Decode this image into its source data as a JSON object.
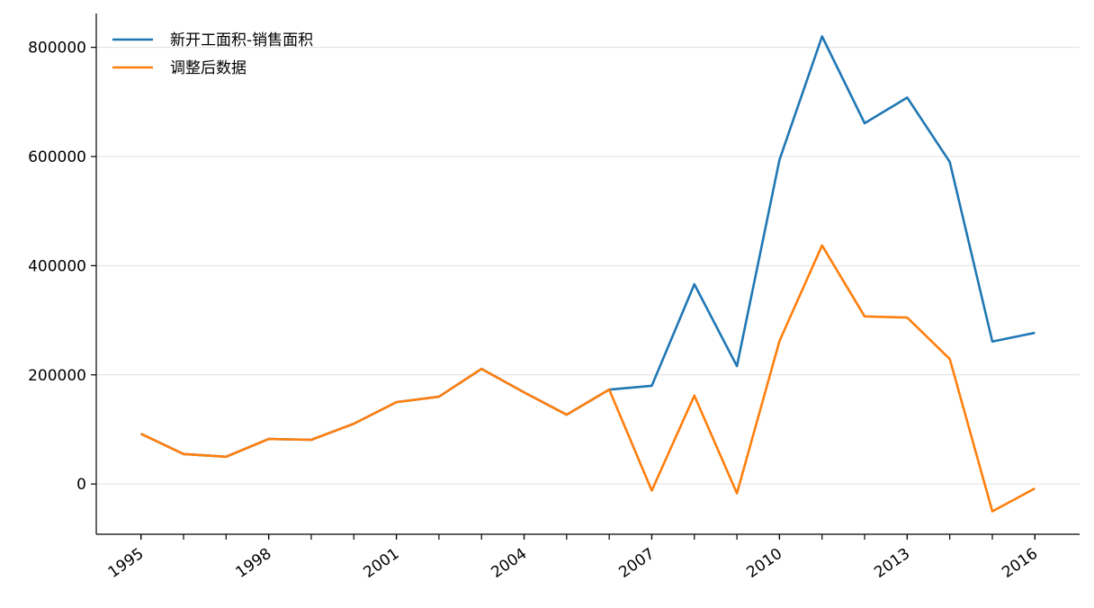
{
  "chart_data": {
    "type": "line",
    "x": [
      1995,
      1996,
      1997,
      1998,
      1999,
      2000,
      2001,
      2002,
      2003,
      2004,
      2005,
      2006,
      2007,
      2008,
      2009,
      2010,
      2011,
      2012,
      2013,
      2014,
      2015,
      2016
    ],
    "series": [
      {
        "name": "新开工面积-销售面积",
        "color": "#1f77b4",
        "values": [
          92000,
          55000,
          50000,
          82500,
          81000,
          110500,
          150000,
          160000,
          211000,
          168000,
          127000,
          173000,
          180000,
          366000,
          216000,
          594000,
          820000,
          661000,
          708000,
          590000,
          261000,
          277000
        ]
      },
      {
        "name": "调整后数据",
        "color": "#ff7f0e",
        "values": [
          92000,
          55000,
          50000,
          82500,
          81000,
          110500,
          150000,
          160000,
          211000,
          168000,
          127000,
          173000,
          -12000,
          162000,
          -17000,
          262000,
          437000,
          307000,
          305000,
          229000,
          -50000,
          -8000
        ]
      }
    ],
    "xlim": [
      1993.95,
      2017.05
    ],
    "xticks": [
      1995,
      1998,
      2001,
      2004,
      2007,
      2010,
      2013,
      2016
    ],
    "ylim": [
      -92000,
      862000
    ],
    "yticks": [
      0,
      200000,
      400000,
      600000,
      800000
    ],
    "grid": true,
    "legend": "upper-left"
  }
}
